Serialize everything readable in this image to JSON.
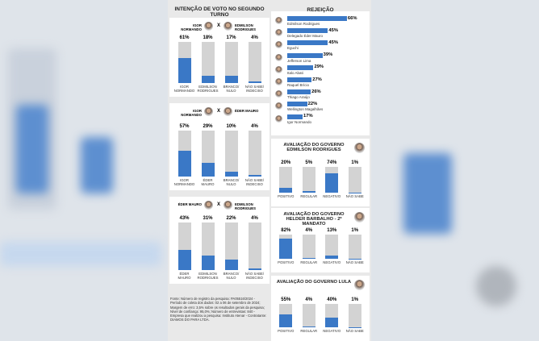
{
  "heading": "INTENÇÃO DE VOTO NO SEGUNDO TURNO",
  "source": "Fonte: Número de registro da pesquisa: PA05516/2024 - Período de coleta dos dados: 02 a 06 de setembro de 2024; Margem de erro: 3,5% sobre os resultados gerais da pesquisa; Nível de confiança: 95,0%; Número de entrevistas: 840 - Empresa que realizou a pesquisa: Instituto Atenar - Contratante: DIAMOS DO PARA LTDA.",
  "chart_data": [
    {
      "type": "bar",
      "names": [
        "IGOR NORMANDO",
        "EDMILSON RODRIGUES"
      ],
      "versus": "X",
      "categories": [
        "IGOR NORMANDO",
        "EDMILSON RODRIGUES",
        "BRANCO/ NULO",
        "NÃO SABE/ INDECISO"
      ],
      "values": [
        61,
        18,
        17,
        4
      ],
      "value_labels": [
        "61%",
        "18%",
        "17%",
        "4%"
      ],
      "ylim": [
        0,
        100
      ],
      "color": "#3a78c6"
    },
    {
      "type": "bar",
      "names": [
        "IGOR NORMANDO",
        "ÉDER MAURO"
      ],
      "versus": "X",
      "categories": [
        "IGOR NORMANDO",
        "ÉDER MAURO",
        "BRANCO/ NULO",
        "NÃO SABE/ INDECISO"
      ],
      "values": [
        57,
        29,
        10,
        4
      ],
      "value_labels": [
        "57%",
        "29%",
        "10%",
        "4%"
      ],
      "ylim": [
        0,
        100
      ],
      "color": "#3a78c6"
    },
    {
      "type": "bar",
      "names": [
        "ÉDER MAURO",
        "EDMILSON RODRIGUES"
      ],
      "versus": "X",
      "categories": [
        "ÉDER MAURO",
        "EDMILSON RODRIGUES",
        "BRANCO/ NULO",
        "NÃO SABE/ INDECISO"
      ],
      "values": [
        43,
        31,
        22,
        4
      ],
      "value_labels": [
        "43%",
        "31%",
        "22%",
        "4%"
      ],
      "ylim": [
        0,
        100
      ],
      "color": "#3a78c6"
    },
    {
      "type": "barh",
      "title": "REJEIÇÃO",
      "categories": [
        "Edmilson Rodrigues",
        "Delegado Éder Mauro",
        "Eguchi",
        "Jefferson Lima",
        "Italo Abati",
        "Raquel Brício",
        "Thiago Araújo",
        "Wellington Magalhães",
        "Igor Normando"
      ],
      "values": [
        66,
        45,
        45,
        39,
        29,
        27,
        26,
        22,
        17
      ],
      "value_labels": [
        "66%",
        "45%",
        "45%",
        "39%",
        "29%",
        "27%",
        "26%",
        "22%",
        "17%"
      ],
      "xlim": [
        0,
        100
      ],
      "color": "#3a78c6"
    },
    {
      "type": "bar",
      "title": "AVALIAÇÃO DO GOVERNO EDMILSON RODRIGUES",
      "categories": [
        "POSITIVO",
        "REGULAR",
        "NEGATIVO",
        "NÃO SABE"
      ],
      "values": [
        20,
        5,
        74,
        1
      ],
      "value_labels": [
        "20%",
        "5%",
        "74%",
        "1%"
      ],
      "ylim": [
        0,
        100
      ],
      "color": "#3a78c6"
    },
    {
      "type": "bar",
      "title": "AVALIAÇÃO DO GOVERNO HELDER BARBALHO - 2º MANDATO",
      "categories": [
        "POSITIVO",
        "REGULAR",
        "NEGATIVO",
        "NÃO SABE"
      ],
      "values": [
        82,
        4,
        13,
        1
      ],
      "value_labels": [
        "82%",
        "4%",
        "13%",
        "1%"
      ],
      "ylim": [
        0,
        100
      ],
      "color": "#3a78c6"
    },
    {
      "type": "bar",
      "title": "AVALIAÇÃO DO GOVERNO LULA",
      "categories": [
        "POSITIVO",
        "REGULAR",
        "NEGATIVO",
        "NÃO SABE"
      ],
      "values": [
        55,
        4,
        40,
        1
      ],
      "value_labels": [
        "55%",
        "4%",
        "40%",
        "1%"
      ],
      "ylim": [
        0,
        100
      ],
      "color": "#3a78c6"
    }
  ]
}
